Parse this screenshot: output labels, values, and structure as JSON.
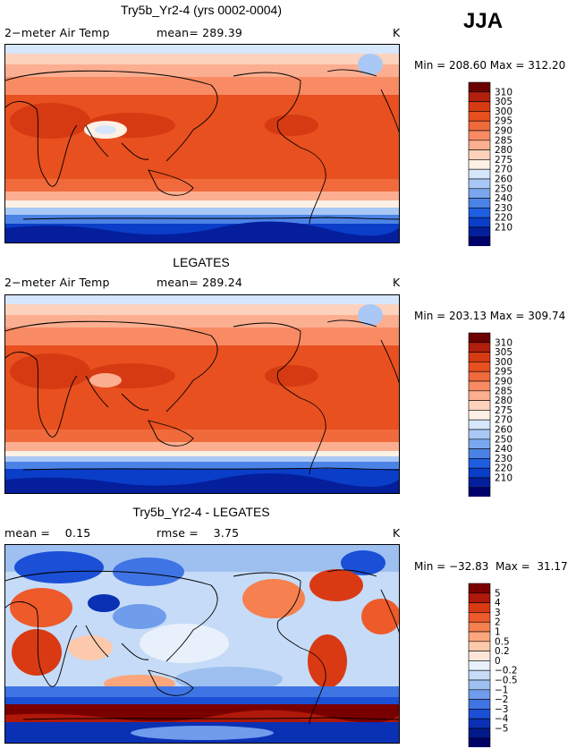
{
  "season": "JJA",
  "panels": [
    {
      "title": "Try5b_Yr2-4 (yrs 0002-0004)",
      "left_label": "2−meter Air Temp",
      "center_label": "mean= 289.39",
      "units": "K",
      "min_max": "Min = 208.60  Max = 312.20",
      "colorbar": {
        "labels": [
          "310",
          "305",
          "300",
          "295",
          "290",
          "285",
          "280",
          "275",
          "270",
          "260",
          "250",
          "240",
          "230",
          "220",
          "210"
        ],
        "colors": [
          "#6b0000",
          "#b0200c",
          "#d63a12",
          "#e8501f",
          "#f06a3c",
          "#f88b64",
          "#fcae90",
          "#fdd2bc",
          "#fdf0e4",
          "#d6e6fb",
          "#a9c8f5",
          "#7aa6ee",
          "#4b82e6",
          "#1f5ee0",
          "#0a3ec8",
          "#041e9c",
          "#00006b"
        ]
      },
      "field": "model"
    },
    {
      "title": "LEGATES",
      "left_label": "2−meter Air Temp",
      "center_label": "mean= 289.24",
      "units": "K",
      "min_max": "Min = 203.13  Max = 309.74",
      "colorbar": {
        "labels": [
          "310",
          "305",
          "300",
          "295",
          "290",
          "285",
          "280",
          "275",
          "270",
          "260",
          "250",
          "240",
          "230",
          "220",
          "210"
        ],
        "colors": [
          "#6b0000",
          "#b0200c",
          "#d63a12",
          "#e8501f",
          "#f06a3c",
          "#f88b64",
          "#fcae90",
          "#fdd2bc",
          "#fdf0e4",
          "#d6e6fb",
          "#a9c8f5",
          "#7aa6ee",
          "#4b82e6",
          "#1f5ee0",
          "#0a3ec8",
          "#041e9c",
          "#00006b"
        ]
      },
      "field": "obs"
    },
    {
      "title": "Try5b_Yr2-4 - LEGATES",
      "left_label": "mean =    0.15",
      "center_label": "rmse =    3.75",
      "units": "K",
      "min_max": "Min = −32.83  Max =  31.17",
      "colorbar": {
        "labels": [
          "5",
          "4",
          "3",
          "2",
          "1",
          "0.5",
          "0.2",
          "0",
          "−0.2",
          "−0.5",
          "−1",
          "−2",
          "−3",
          "−4",
          "−5"
        ],
        "colors": [
          "#7a0000",
          "#b0180a",
          "#d93a14",
          "#ee5a2a",
          "#f6804f",
          "#fba67c",
          "#fdc9ac",
          "#fde6d8",
          "#e8f0fb",
          "#c6dbf7",
          "#9ec0f1",
          "#6f9ceb",
          "#3f74e4",
          "#1a4fd6",
          "#0a30b4",
          "#031a8a",
          "#000066"
        ]
      },
      "field": "diff"
    }
  ]
}
